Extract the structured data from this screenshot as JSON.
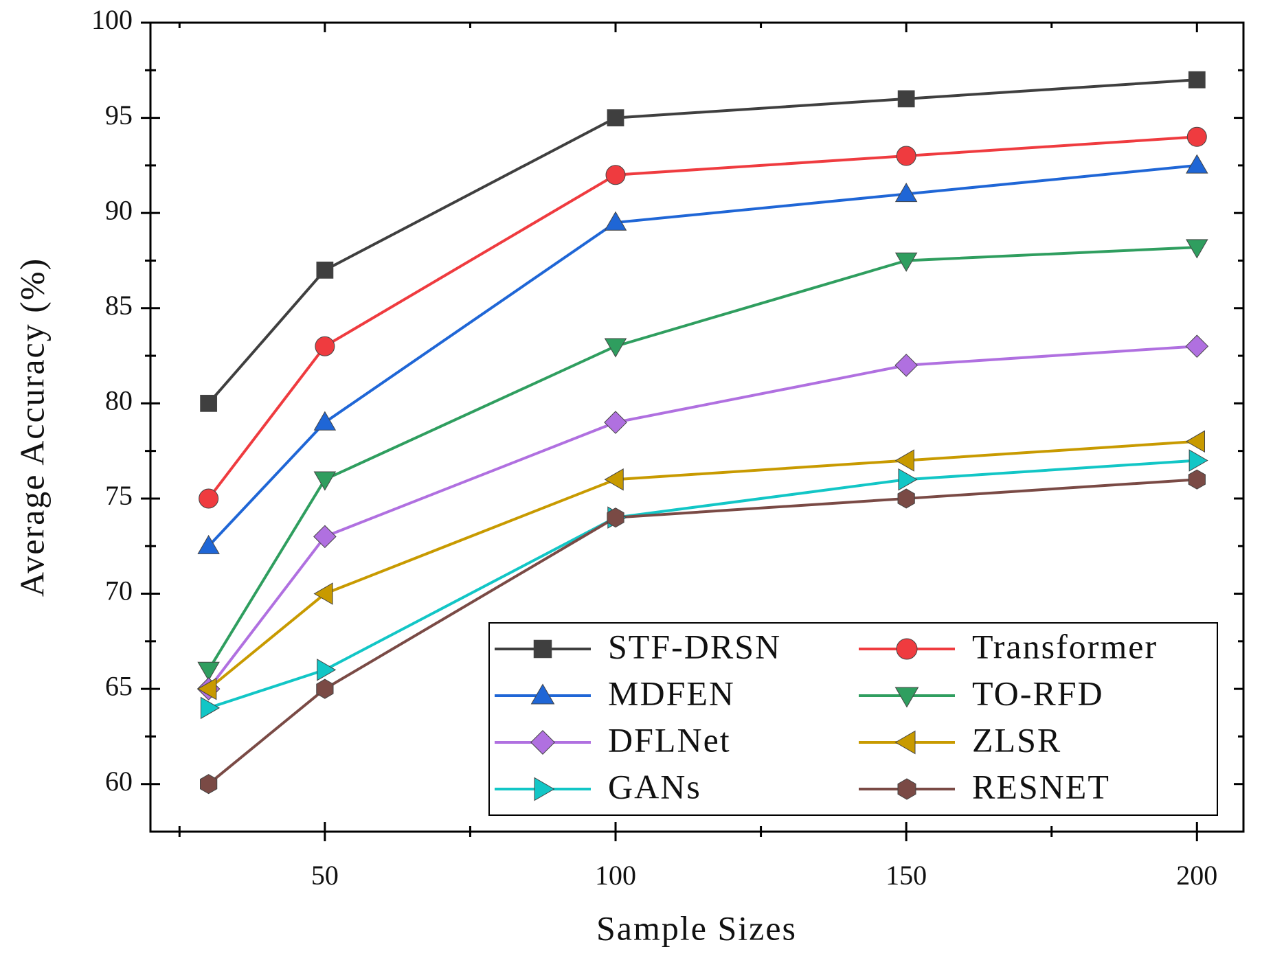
{
  "chart_data": {
    "type": "line",
    "xlabel": "Sample Sizes",
    "ylabel": "Average Accuracy (%)",
    "x": [
      30,
      50,
      100,
      150,
      200
    ],
    "xlim": [
      20,
      208
    ],
    "xticks": [
      50,
      100,
      150,
      200
    ],
    "xminor": [
      25,
      75,
      125,
      175
    ],
    "ylim": [
      57.5,
      100
    ],
    "yticks": [
      60,
      65,
      70,
      75,
      80,
      85,
      90,
      95,
      100
    ],
    "yminor": [
      62.5,
      67.5,
      72.5,
      77.5,
      82.5,
      87.5,
      92.5,
      97.5
    ],
    "legend": "lower right",
    "legend_columns": 2,
    "series": [
      {
        "name": "STF-DRSN",
        "color": "#3f3f3f",
        "marker": "square",
        "values": [
          80,
          87,
          95,
          96,
          97
        ]
      },
      {
        "name": "Transformer",
        "color": "#ef3b3f",
        "marker": "circle",
        "values": [
          75,
          83,
          92,
          93,
          94
        ]
      },
      {
        "name": "MDFEN",
        "color": "#1f66d6",
        "marker": "triangle-up",
        "values": [
          72.5,
          79,
          89.5,
          91,
          92.5
        ]
      },
      {
        "name": "TO-RFD",
        "color": "#2f9e5f",
        "marker": "triangle-down",
        "values": [
          66,
          76,
          83,
          87.5,
          88.2
        ]
      },
      {
        "name": "DFLNet",
        "color": "#b070e0",
        "marker": "diamond",
        "values": [
          65,
          73,
          79,
          82,
          83
        ]
      },
      {
        "name": "ZLSR",
        "color": "#c89a00",
        "marker": "triangle-left",
        "values": [
          65,
          70,
          76,
          77,
          78
        ]
      },
      {
        "name": "GANs",
        "color": "#12c6c6",
        "marker": "triangle-right",
        "values": [
          64,
          66,
          74,
          76,
          77
        ]
      },
      {
        "name": "RESNET",
        "color": "#7a4a45",
        "marker": "hexagon",
        "values": [
          60,
          65,
          74,
          75,
          76
        ]
      }
    ]
  }
}
